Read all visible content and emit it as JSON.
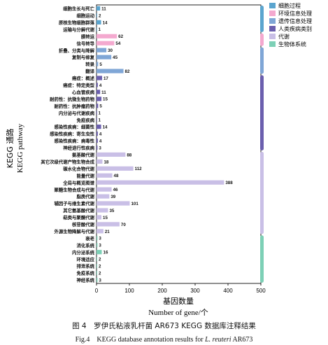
{
  "caption": {
    "cn": "图 4　罗伊氏粘液乳杆菌 AR673 KEGG 数据库注释结果",
    "en_prefix": "Fig.4　KEGG database annotation results for ",
    "en_species": "L. reuteri",
    "en_suffix": " AR673"
  },
  "chart_data": {
    "type": "bar",
    "orientation": "horizontal",
    "xlabel_cn": "基因数量",
    "xlabel_en": "Number of gene/个",
    "ylabel_cn": "KEGG 通路",
    "ylabel_en": "KEGG pathway",
    "xlim": [
      0,
      500
    ],
    "xticks": [
      0,
      100,
      200,
      300,
      400,
      500
    ],
    "grid": false,
    "legend_position": "top-right",
    "categories": [
      {
        "name": "细胞过程",
        "color": "#5ba5cf"
      },
      {
        "name": "环境信息处理",
        "color": "#f4a9cf"
      },
      {
        "name": "遗传信息处理",
        "color": "#7fa6d6"
      },
      {
        "name": "人类疾病类别",
        "color": "#6b5fae"
      },
      {
        "name": "代谢",
        "color": "#c9bfe6"
      },
      {
        "name": "生物体系统",
        "color": "#7dd0b6"
      }
    ],
    "bars": [
      {
        "label": "细胞生长与死亡",
        "value": 11,
        "category": 0
      },
      {
        "label": "细胞运动",
        "value": 2,
        "category": 0
      },
      {
        "label": "原核生物细胞群落",
        "value": 14,
        "category": 0
      },
      {
        "label": "运输与分解代谢",
        "value": 1,
        "category": 0
      },
      {
        "label": "膜转运",
        "value": 62,
        "category": 1
      },
      {
        "label": "信号转导",
        "value": 54,
        "category": 1
      },
      {
        "label": "折叠、分类与降解",
        "value": 30,
        "category": 2
      },
      {
        "label": "复制与修复",
        "value": 45,
        "category": 2
      },
      {
        "label": "转录",
        "value": 5,
        "category": 2
      },
      {
        "label": "翻译",
        "value": 82,
        "category": 2
      },
      {
        "label": "癌症：概述",
        "value": 17,
        "category": 3
      },
      {
        "label": "癌症：特定类型",
        "value": 4,
        "category": 3
      },
      {
        "label": "心血管疾病",
        "value": 11,
        "category": 3
      },
      {
        "label": "耐药性：抗微生物药物",
        "value": 15,
        "category": 3
      },
      {
        "label": "耐药性：抗肿瘤药物",
        "value": 5,
        "category": 3
      },
      {
        "label": "内分泌与代谢疾病",
        "value": 1,
        "category": 3
      },
      {
        "label": "免疫疾病",
        "value": 1,
        "category": 3
      },
      {
        "label": "感染性疾病：细菌性",
        "value": 14,
        "category": 3
      },
      {
        "label": "感染性疾病：寄生虫性",
        "value": 4,
        "category": 3
      },
      {
        "label": "感染性疾病：病毒性",
        "value": 4,
        "category": 3
      },
      {
        "label": "神经退行性疾病",
        "value": 3,
        "category": 3
      },
      {
        "label": "氨基酸代谢",
        "value": 88,
        "category": 4
      },
      {
        "label": "其它次级代谢产物生物合成",
        "value": 18,
        "category": 4
      },
      {
        "label": "碳水化合物代谢",
        "value": 112,
        "category": 4
      },
      {
        "label": "能量代谢",
        "value": 48,
        "category": 4
      },
      {
        "label": "全局与概览图谱",
        "value": 388,
        "category": 4
      },
      {
        "label": "聚糖生物合成与代谢",
        "value": 46,
        "category": 4
      },
      {
        "label": "脂质代谢",
        "value": 39,
        "category": 4
      },
      {
        "label": "辅因子与维生素代谢",
        "value": 101,
        "category": 4
      },
      {
        "label": "其它氨基酸代谢",
        "value": 35,
        "category": 4
      },
      {
        "label": "萜类与聚酮代谢",
        "value": 15,
        "category": 4
      },
      {
        "label": "核苷酸代谢",
        "value": 70,
        "category": 4
      },
      {
        "label": "外源生物降解与代谢",
        "value": 21,
        "category": 4
      },
      {
        "label": "衰老",
        "value": 3,
        "category": 5
      },
      {
        "label": "消化系统",
        "value": 3,
        "category": 5
      },
      {
        "label": "内分泌系统",
        "value": 16,
        "category": 5
      },
      {
        "label": "环境适应",
        "value": 2,
        "category": 5
      },
      {
        "label": "排泄系统",
        "value": 2,
        "category": 5
      },
      {
        "label": "免疫系统",
        "value": 2,
        "category": 5
      },
      {
        "label": "神经系统",
        "value": 3,
        "category": 5
      }
    ]
  }
}
